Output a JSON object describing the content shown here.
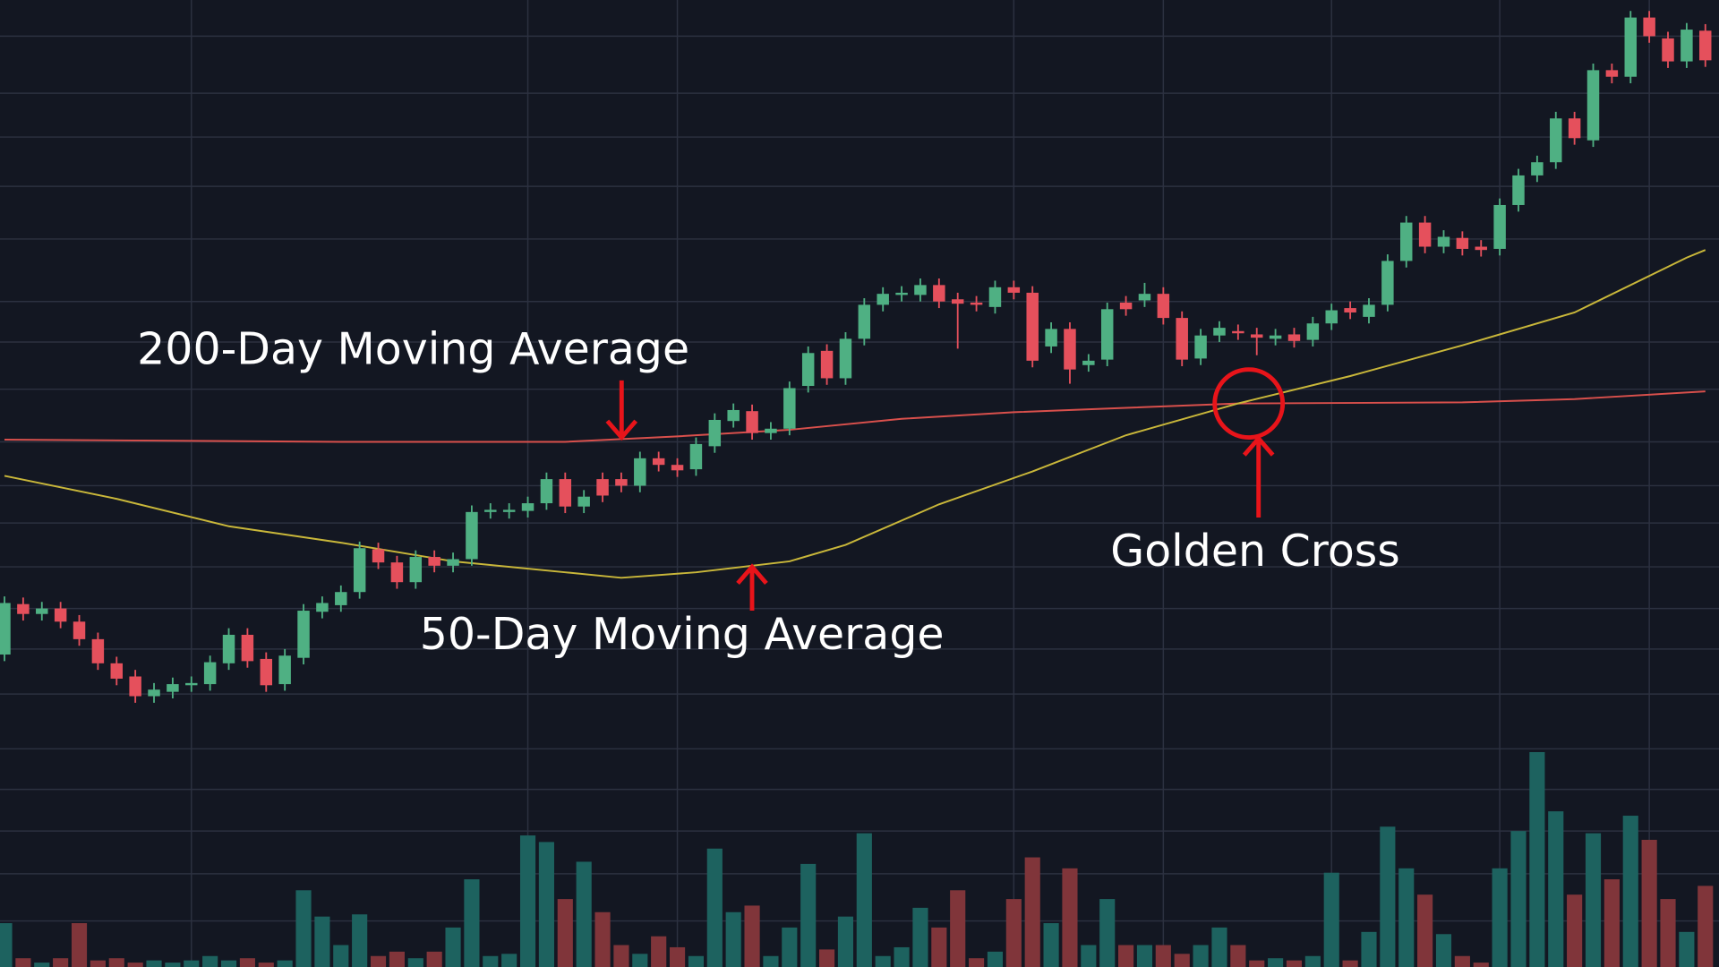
{
  "chart_data": {
    "type": "candlestick",
    "xlim": [
      -0.24,
      91.73
    ],
    "ylim": [
      0,
      882
    ],
    "xticks": [
      10,
      28,
      36,
      54,
      62,
      71,
      80,
      88
    ],
    "yticks": [
      849,
      797,
      757,
      712,
      664,
      607,
      570,
      527,
      479,
      439,
      405,
      365,
      327,
      290,
      249,
      199,
      162,
      124,
      85,
      42
    ],
    "grid": true,
    "up_color": "#4fb083",
    "down_color": "#e5505c",
    "volume_up_color": "#1d625f",
    "volume_down_color": "#80353a",
    "open": [
      285,
      331,
      322,
      327,
      315,
      299,
      277,
      265,
      247,
      251,
      257,
      258,
      277,
      303,
      281,
      258,
      282,
      324,
      330,
      342,
      381,
      369,
      351,
      374,
      366,
      372,
      415,
      415,
      416,
      423,
      445,
      420,
      445,
      445,
      439,
      464,
      458,
      454,
      475,
      498,
      507,
      487,
      491,
      530,
      562,
      537,
      573,
      604,
      613,
      613,
      622,
      609,
      606,
      602,
      620,
      615,
      566,
      582,
      549,
      554,
      606,
      608,
      614,
      592,
      555,
      576,
      580,
      577,
      573,
      577,
      572,
      587,
      601,
      593,
      604,
      644,
      679,
      657,
      665,
      657,
      655,
      695,
      722,
      734,
      774,
      754,
      818,
      812,
      866,
      847,
      826,
      854
    ],
    "high": [
      338,
      337,
      333,
      333,
      321,
      305,
      283,
      271,
      259,
      264,
      265,
      284,
      309,
      309,
      287,
      290,
      331,
      338,
      348,
      388,
      387,
      375,
      380,
      380,
      378,
      421,
      423,
      423,
      429,
      451,
      451,
      435,
      451,
      451,
      470,
      470,
      464,
      483,
      505,
      514,
      513,
      497,
      534,
      566,
      568,
      579,
      610,
      620,
      621,
      628,
      628,
      615,
      612,
      626,
      626,
      621,
      588,
      588,
      559,
      606,
      612,
      624,
      620,
      598,
      582,
      589,
      586,
      583,
      582,
      583,
      593,
      605,
      607,
      610,
      650,
      685,
      685,
      672,
      671,
      663,
      701,
      728,
      740,
      780,
      780,
      824,
      824,
      872,
      872,
      853,
      861,
      860
    ],
    "low": [
      279,
      316,
      316,
      309,
      293,
      271,
      257,
      241,
      241,
      245,
      251,
      252,
      271,
      273,
      251,
      252,
      276,
      318,
      324,
      336,
      363,
      345,
      345,
      360,
      360,
      366,
      409,
      409,
      410,
      417,
      414,
      414,
      424,
      433,
      433,
      452,
      447,
      448,
      469,
      492,
      481,
      481,
      485,
      524,
      531,
      531,
      567,
      598,
      607,
      607,
      601,
      564,
      598,
      596,
      609,
      547,
      560,
      532,
      543,
      548,
      594,
      602,
      586,
      548,
      549,
      570,
      572,
      558,
      567,
      565,
      566,
      581,
      591,
      587,
      598,
      638,
      651,
      651,
      649,
      648,
      649,
      689,
      716,
      728,
      750,
      748,
      806,
      806,
      843,
      820,
      820,
      821
    ],
    "close": [
      332,
      322,
      327,
      315,
      299,
      277,
      263,
      247,
      253,
      258,
      259,
      278,
      303,
      279,
      257,
      284,
      325,
      332,
      342,
      382,
      369,
      351,
      374,
      366,
      372,
      415,
      417,
      417,
      423,
      445,
      420,
      429,
      430,
      439,
      464,
      458,
      453,
      477,
      499,
      508,
      487,
      491,
      528,
      560,
      537,
      573,
      604,
      614,
      615,
      622,
      607,
      605,
      604,
      620,
      615,
      553,
      582,
      545,
      553,
      600,
      600,
      614,
      592,
      554,
      576,
      583,
      578,
      574,
      576,
      571,
      587,
      599,
      597,
      604,
      644,
      679,
      657,
      666,
      655,
      654,
      695,
      722,
      734,
      774,
      756,
      818,
      812,
      866,
      849,
      826,
      855,
      827
    ],
    "volume": [
      40,
      8,
      4,
      8,
      40,
      6,
      8,
      4,
      6,
      4,
      6,
      10,
      6,
      8,
      4,
      6,
      70,
      46,
      20,
      48,
      10,
      14,
      8,
      14,
      36,
      80,
      10,
      12,
      120,
      114,
      62,
      96,
      50,
      20,
      12,
      28,
      18,
      10,
      108,
      50,
      56,
      10,
      36,
      94,
      16,
      46,
      122,
      10,
      18,
      54,
      36,
      70,
      8,
      14,
      62,
      100,
      40,
      90,
      20,
      62,
      20,
      20,
      20,
      12,
      20,
      36,
      20,
      6,
      8,
      6,
      10,
      86,
      6,
      32,
      128,
      90,
      66,
      30,
      10,
      4,
      90,
      124,
      196,
      142,
      66,
      122,
      80,
      138,
      116,
      62,
      32,
      74
    ],
    "lines": [
      {
        "name": "200-Day Moving Average",
        "color": "#d9504c",
        "x": [
          0,
          18,
          30,
          36,
          42,
          48,
          54,
          60,
          66,
          78,
          84,
          91
        ],
        "values": [
          481,
          479,
          479,
          484,
          490,
          500,
          506,
          510,
          514,
          515,
          518,
          525
        ]
      },
      {
        "name": "50-Day Moving Average",
        "color": "#c9b73a",
        "x": [
          0,
          6,
          12,
          18,
          24,
          30,
          33,
          37,
          42,
          45,
          50,
          55,
          60,
          66,
          72,
          78,
          84,
          90,
          91
        ],
        "values": [
          448,
          427,
          402,
          387,
          370,
          360,
          355,
          360,
          370,
          385,
          422,
          452,
          485,
          514,
          539,
          567,
          597,
          647,
          654
        ]
      }
    ],
    "annotations": [
      {
        "text": "Golden Cross"
      }
    ]
  }
}
